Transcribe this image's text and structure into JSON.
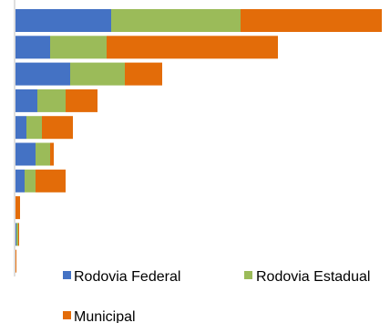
{
  "chart_data": {
    "type": "bar",
    "orientation": "horizontal",
    "stacked": true,
    "categories": [
      "",
      "",
      "",
      "",
      "",
      "",
      "",
      "",
      "",
      ""
    ],
    "series": [
      {
        "name": "Rodovia Federal",
        "color": "#4472C4",
        "values": [
          105,
          38,
          60,
          24,
          12,
          22,
          10,
          0,
          1,
          0
        ]
      },
      {
        "name": "Rodovia Estadual",
        "color": "#9BBB59",
        "values": [
          142,
          62,
          60,
          31,
          17,
          16,
          12,
          0,
          2,
          0
        ]
      },
      {
        "name": "Municipal",
        "color": "#E36C09",
        "values": [
          155,
          188,
          41,
          35,
          34,
          4,
          33,
          5,
          1,
          1
        ]
      }
    ],
    "xlim": [
      0,
      402
    ],
    "grid": false,
    "legend_position": "bottom",
    "title": "",
    "xlabel": "",
    "ylabel": ""
  }
}
